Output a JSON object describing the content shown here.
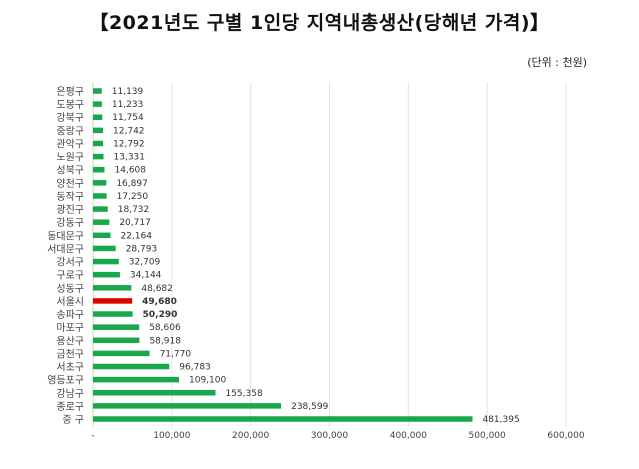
{
  "chart_data": {
    "type": "bar",
    "orientation": "horizontal",
    "title": "【2021년도 구별 1인당 지역내총생산(당해년 가격)】",
    "unit_label": "(단위 : 천원)",
    "categories": [
      "은평구",
      "도봉구",
      "강북구",
      "중랑구",
      "관악구",
      "노원구",
      "성북구",
      "양천구",
      "동작구",
      "광진구",
      "강동구",
      "동대문구",
      "서대문구",
      "강서구",
      "구로구",
      "성동구",
      "서울시",
      "송파구",
      "마포구",
      "용산구",
      "금천구",
      "서초구",
      "영등포구",
      "강남구",
      "종로구",
      "중 구"
    ],
    "values": [
      11139,
      11233,
      11754,
      12742,
      12792,
      13331,
      14608,
      16897,
      17250,
      18732,
      20717,
      22164,
      28793,
      32709,
      34144,
      48682,
      49680,
      50290,
      58606,
      58918,
      71770,
      96783,
      109100,
      155358,
      238599,
      481395
    ],
    "value_labels": [
      "11,139",
      "11,233",
      "11,754",
      "12,742",
      "12,792",
      "13,331",
      "14,608",
      "16,897",
      "17,250",
      "18,732",
      "20,717",
      "22,164",
      "28,793",
      "32,709",
      "34,144",
      "48,682",
      "49,680",
      "50,290",
      "58,606",
      "58,918",
      "71,770",
      "96,783",
      "109,100",
      "155,358",
      "238,599",
      "481,395"
    ],
    "highlight_category": "서울시",
    "colors": {
      "bar": "#1aa64a",
      "highlight": "#e00000",
      "grid": "#e4e4e4"
    },
    "xlim": [
      0,
      600000
    ],
    "xticks": [
      0,
      100000,
      200000,
      300000,
      400000,
      500000,
      600000
    ],
    "xtick_labels": [
      "-",
      "100,000",
      "200,000",
      "300,000",
      "400,000",
      "500,000",
      "600,000"
    ],
    "xlabel": "",
    "ylabel": "",
    "grid": true
  }
}
